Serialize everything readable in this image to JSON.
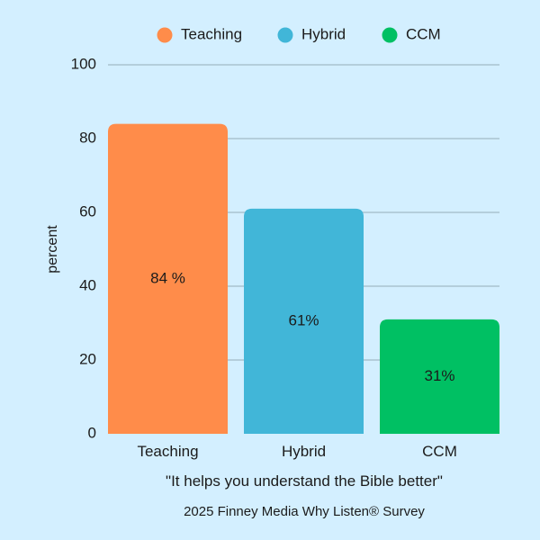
{
  "chart_data": {
    "type": "bar",
    "categories": [
      "Teaching",
      "Hybrid",
      "CCM"
    ],
    "values": [
      84,
      61,
      31
    ],
    "data_labels": [
      "84 %",
      "61%",
      "31%"
    ],
    "colors": [
      "#ff8c4a",
      "#41b6d8",
      "#00c063"
    ],
    "ylabel": "percent",
    "ylim": [
      0,
      100
    ],
    "yticks": [
      0,
      20,
      40,
      60,
      80,
      100
    ],
    "grid": true,
    "gridline_color": "#a9c3cf",
    "legend": {
      "placement": "top-center",
      "entries": [
        "Teaching",
        "Hybrid",
        "CCM"
      ]
    },
    "xlabel": "\"It helps you understand the Bible better\"",
    "source": "2025 Finney Media Why Listen® Survey"
  }
}
